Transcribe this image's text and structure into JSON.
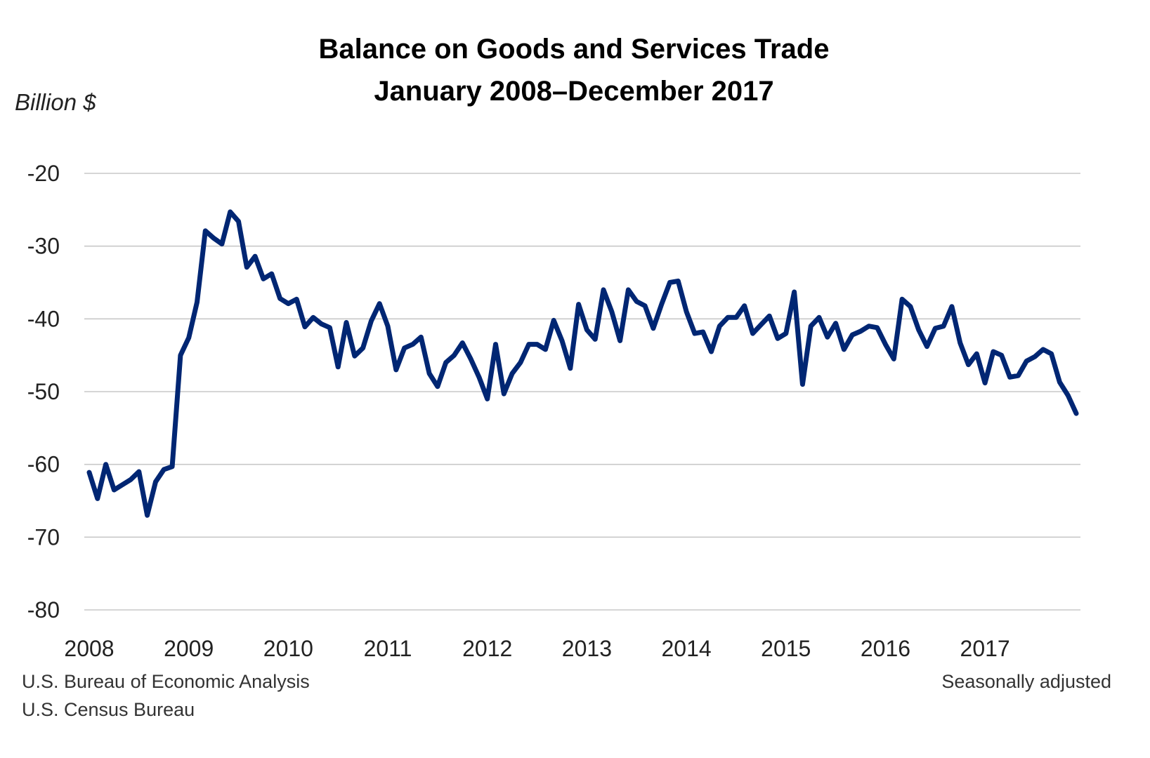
{
  "chart_data": {
    "type": "line",
    "title": "Balance on Goods and Services Trade",
    "subtitle": "January 2008–December 2017",
    "ylabel": "Billion $",
    "xlabel": "",
    "ylim": [
      -80,
      -20
    ],
    "yticks": [
      "-20",
      "-30",
      "-40",
      "-50",
      "-60",
      "-70",
      "-80"
    ],
    "ytick_values": [
      -20,
      -30,
      -40,
      -50,
      -60,
      -70,
      -80
    ],
    "xticks": [
      "2008",
      "2009",
      "2010",
      "2011",
      "2012",
      "2013",
      "2014",
      "2015",
      "2016",
      "2017"
    ],
    "x_start": "2008-01",
    "x_frequency": "monthly",
    "grid": "horizontal",
    "color": "#002673",
    "series": [
      {
        "values": [
          -61.1,
          -64.7,
          -60.0,
          -63.5,
          -62.8,
          -62.1,
          -61.0,
          -67.0,
          -62.4,
          -60.7,
          -60.3,
          -45.0,
          -42.6,
          -37.7,
          -27.9,
          -28.9,
          -29.7,
          -25.3,
          -26.6,
          -32.9,
          -31.4,
          -34.5,
          -33.8,
          -37.2,
          -37.9,
          -37.3,
          -41.1,
          -39.8,
          -40.7,
          -41.2,
          -46.6,
          -40.5,
          -45.1,
          -44.0,
          -40.3,
          -37.9,
          -41.0,
          -47.0,
          -44.0,
          -43.5,
          -42.5,
          -47.5,
          -49.3,
          -46.0,
          -45.0,
          -43.3,
          -45.5,
          -48.0,
          -51.0,
          -43.5,
          -50.3,
          -47.5,
          -46.0,
          -43.5,
          -43.5,
          -44.2,
          -40.2,
          -43.0,
          -46.8,
          -38.0,
          -41.5,
          -42.8,
          -36.0,
          -39.0,
          -43.0,
          -36.0,
          -37.6,
          -38.2,
          -41.3,
          -38.0,
          -35.0,
          -34.8,
          -39.0,
          -42.0,
          -41.8,
          -44.5,
          -41.0,
          -39.8,
          -39.8,
          -38.2,
          -42.0,
          -40.8,
          -39.6,
          -42.7,
          -42.0,
          -36.3,
          -49.0,
          -41.0,
          -39.8,
          -42.5,
          -40.6,
          -44.2,
          -42.2,
          -41.7,
          -41.0,
          -41.2,
          -43.5,
          -45.5,
          -37.3,
          -38.3,
          -41.5,
          -43.8,
          -41.3,
          -41.0,
          -38.3,
          -43.3,
          -46.3,
          -44.8,
          -48.8,
          -44.5,
          -45.0,
          -48.0,
          -47.8,
          -45.8,
          -45.2,
          -44.2,
          -44.8,
          -48.7,
          -50.5,
          -53.0
        ]
      }
    ]
  },
  "footer": {
    "source_1": "U.S. Bureau of Economic Analysis",
    "source_2": "U.S. Census Bureau",
    "note": "Seasonally adjusted"
  }
}
